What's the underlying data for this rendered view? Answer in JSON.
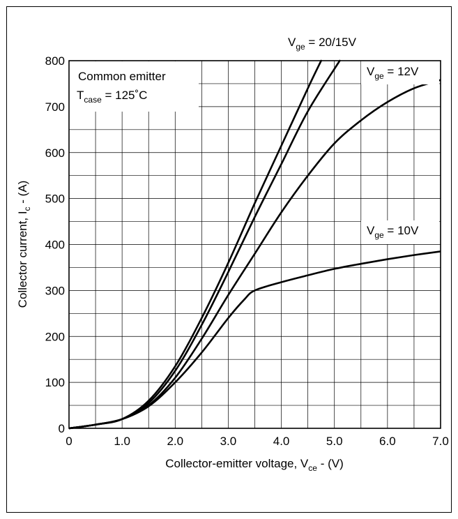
{
  "chart_data": {
    "type": "line",
    "xlabel": {
      "main": "Collector-emitter voltage, V",
      "sub": "ce",
      "tail": " - (V)"
    },
    "ylabel": {
      "main": "Collector current, I",
      "sub": "c",
      "tail": " - (A)"
    },
    "xlim": [
      0,
      7.0
    ],
    "ylim": [
      0,
      800
    ],
    "x_ticks": [
      0,
      1.0,
      2.0,
      3.0,
      4.0,
      5.0,
      6.0,
      7.0
    ],
    "x_tick_labels": [
      "0",
      "1.0",
      "2.0",
      "3.0",
      "4.0",
      "5.0",
      "6.0",
      "7.0"
    ],
    "y_ticks": [
      0,
      100,
      200,
      300,
      400,
      500,
      600,
      700,
      800
    ],
    "y_tick_labels": [
      "0",
      "100",
      "200",
      "300",
      "400",
      "500",
      "600",
      "700",
      "800"
    ],
    "grid": true,
    "minor_grid_step": {
      "x": 0.5,
      "y": 50
    },
    "condition": {
      "line1": "Common emitter",
      "line2_main": "T",
      "line2_sub": "case",
      "line2_tail": " = 125˚C"
    },
    "series": [
      {
        "name": "20V",
        "label_main": "V",
        "label_sub": "ge",
        "label_tail": " = 20/15V",
        "x": [
          0,
          0.5,
          1.0,
          1.5,
          2.0,
          2.5,
          3.0,
          3.5,
          4.0,
          4.5,
          4.75
        ],
        "values": [
          0,
          8,
          20,
          60,
          135,
          240,
          360,
          490,
          615,
          740,
          800
        ]
      },
      {
        "name": "15V",
        "x": [
          0,
          0.5,
          1.0,
          1.5,
          2.0,
          2.5,
          3.0,
          3.5,
          4.0,
          4.5,
          5.1
        ],
        "values": [
          0,
          8,
          20,
          55,
          125,
          225,
          340,
          460,
          575,
          690,
          800
        ]
      },
      {
        "name": "12V",
        "label_main": "V",
        "label_sub": "ge",
        "label_tail": " = 12V",
        "x": [
          0,
          0.5,
          1.0,
          1.5,
          2.0,
          2.5,
          3.0,
          3.5,
          4.0,
          4.5,
          5.0,
          5.5,
          6.0,
          6.5,
          7.0
        ],
        "values": [
          0,
          8,
          20,
          50,
          110,
          195,
          290,
          380,
          470,
          550,
          620,
          670,
          710,
          740,
          758
        ]
      },
      {
        "name": "10V",
        "label_main": "V",
        "label_sub": "ge",
        "label_tail": " = 10V",
        "x": [
          0,
          0.5,
          1.0,
          1.5,
          2.0,
          2.5,
          3.0,
          3.3,
          3.5,
          4.0,
          4.5,
          5.0,
          5.5,
          6.0,
          6.5,
          7.0
        ],
        "values": [
          0,
          8,
          20,
          48,
          100,
          165,
          240,
          280,
          300,
          318,
          333,
          347,
          358,
          368,
          377,
          385
        ]
      }
    ]
  }
}
